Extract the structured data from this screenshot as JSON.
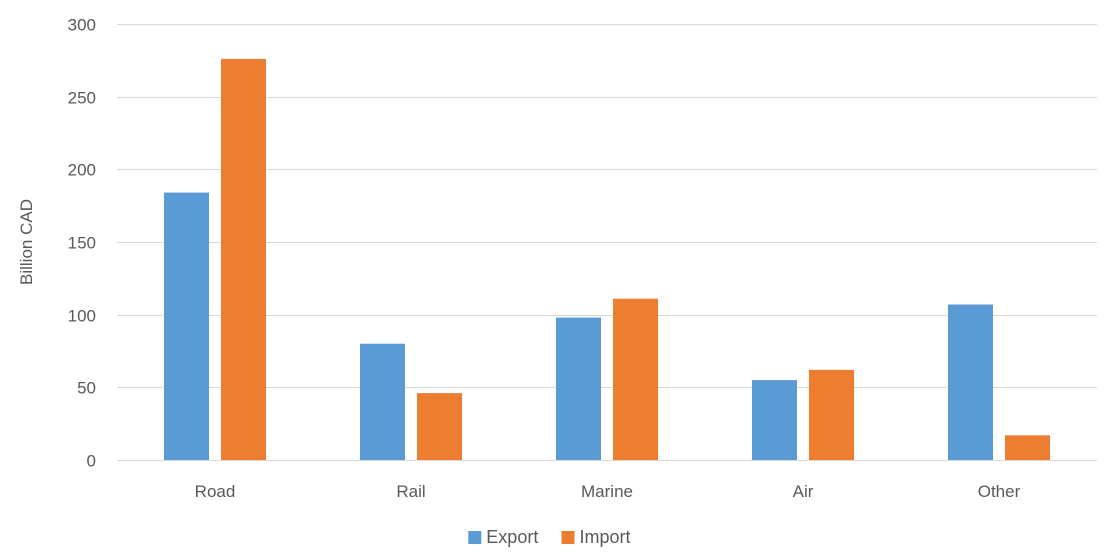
{
  "chart_data": {
    "type": "bar",
    "categories": [
      "Road",
      "Rail",
      "Marine",
      "Air",
      "Other"
    ],
    "series": [
      {
        "name": "Export",
        "values": [
          184,
          80,
          98,
          55,
          107
        ],
        "color": "#5b9bd5"
      },
      {
        "name": "Import",
        "values": [
          276,
          46,
          111,
          62,
          17
        ],
        "color": "#ed7d31"
      }
    ],
    "xlabel": "",
    "ylabel": "Billion CAD",
    "ylim": [
      0,
      300
    ],
    "yticks": [
      0,
      50,
      100,
      150,
      200,
      250,
      300
    ],
    "grid": true,
    "legend_position": "bottom",
    "gridline_color": "#d9d9d9"
  }
}
